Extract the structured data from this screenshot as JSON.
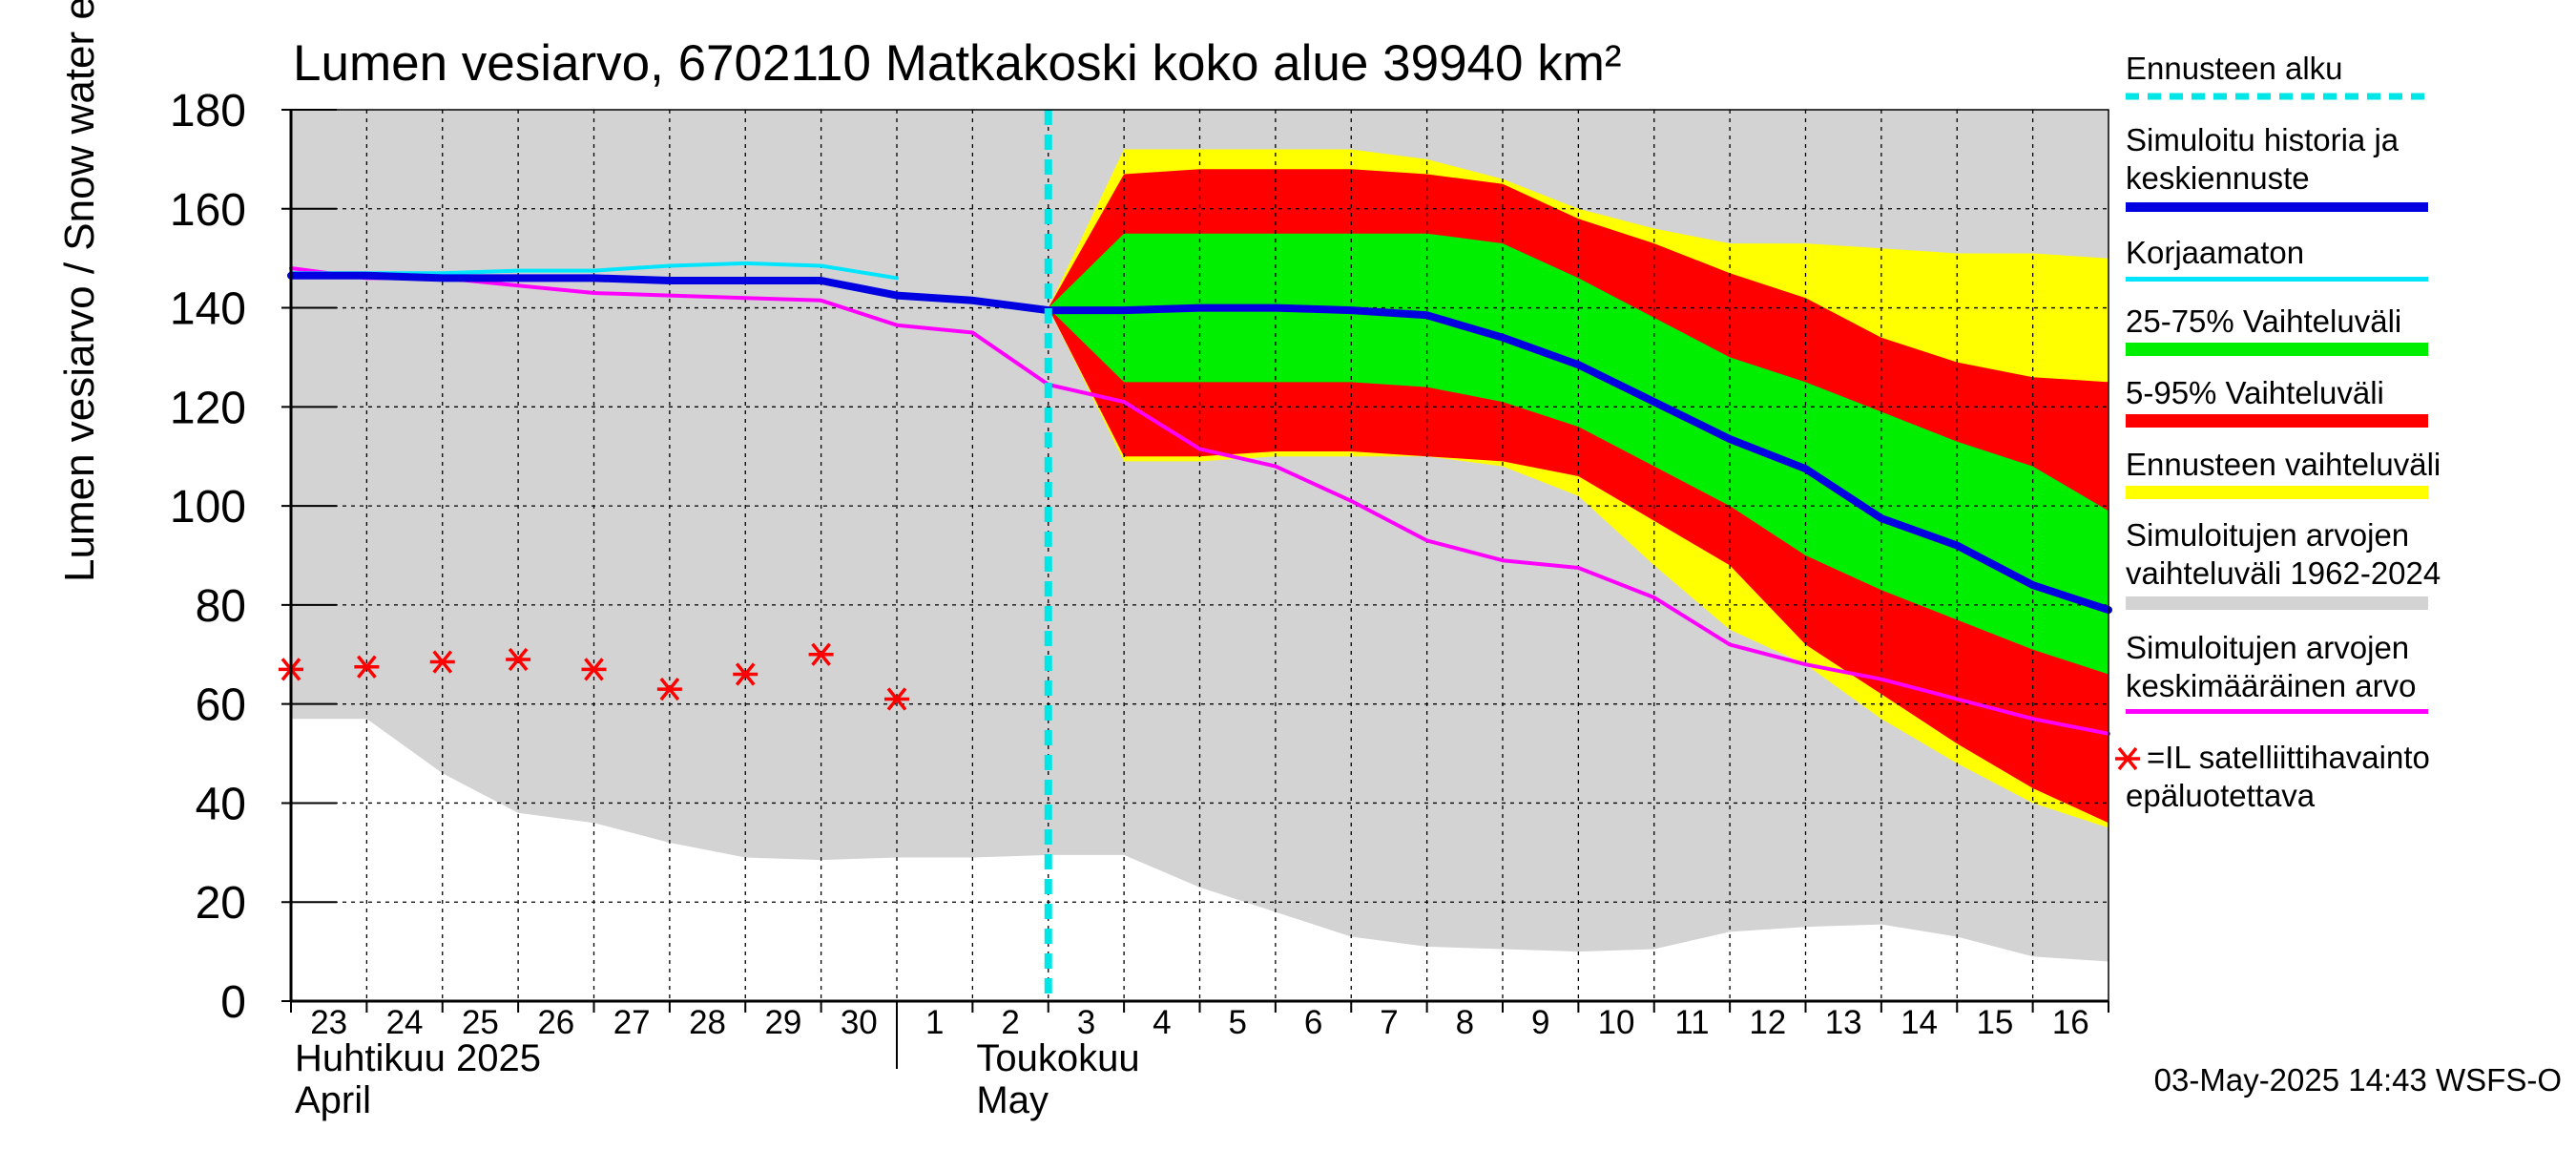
{
  "chart_data": {
    "type": "area",
    "title": "Lumen vesiarvo, 6702110 Matkakoski koko alue 39940 km²",
    "ylabel": "Lumen vesiarvo / Snow water equiv.    mm",
    "ylim": [
      0,
      180
    ],
    "yticks": [
      0,
      20,
      40,
      60,
      80,
      100,
      120,
      140,
      160,
      180
    ],
    "x_range": [
      0,
      24
    ],
    "day_labels": [
      "23",
      "24",
      "25",
      "26",
      "27",
      "28",
      "29",
      "30",
      "1",
      "2",
      "3",
      "4",
      "5",
      "6",
      "7",
      "8",
      "9",
      "10",
      "11",
      "12",
      "13",
      "14",
      "15",
      "16"
    ],
    "month_labels": [
      {
        "fi": "Huhtikuu  2025",
        "en": "April",
        "at_day": 0
      },
      {
        "fi": "Toukokuu",
        "en": "May",
        "at_day": 9
      }
    ],
    "month_separator_day": 8,
    "forecast_start_day": 10,
    "timestamp": "03-May-2025 14:43 WSFS-O",
    "legend": {
      "forecast_start": "Ennusteen alku",
      "simulated_history": "Simuloitu historia ja keskiennuste",
      "uncorrected": "Korjaamaton",
      "range_25_75": "25-75% Vaihteluväli",
      "range_5_95": "5-95% Vaihteluväli",
      "forecast_range": "Ennusteen vaihteluväli",
      "sim_range": "Simuloitujen arvojen vaihteluväli 1962-2024",
      "sim_mean": "Simuloitujen arvojen keskimääräinen arvo",
      "satellite": "=IL satelliittihavainto epäluotettava"
    },
    "colors": {
      "sim_range": "#d3d3d3",
      "forecast_range": "#ffff00",
      "range_5_95": "#ff0000",
      "range_25_75": "#00ee00",
      "median": "#0000e0",
      "uncorrected": "#00e5ff",
      "sim_mean": "#ff00ff",
      "forecast_line": "#00e5e5",
      "satellite": "#ff0000"
    },
    "series": {
      "sim_range": {
        "x": [
          0,
          1,
          2,
          3,
          4,
          5,
          6,
          7,
          8,
          9,
          10,
          11,
          12,
          13,
          14,
          15,
          16,
          17,
          18,
          19,
          20,
          21,
          22,
          23,
          24
        ],
        "upper": [
          180,
          180,
          180,
          180,
          180,
          180,
          180,
          180,
          180,
          180,
          180,
          180,
          180,
          180,
          180,
          180,
          180,
          180,
          180,
          180,
          180,
          180,
          180,
          180,
          180
        ],
        "lower": [
          57,
          57,
          46,
          38,
          36,
          32,
          29,
          28.5,
          29,
          29,
          29.5,
          29.5,
          23,
          18,
          13,
          11,
          10.5,
          10,
          10.5,
          14,
          15,
          15.5,
          13,
          9,
          8
        ]
      },
      "forecast_range": {
        "x": [
          10,
          11,
          12,
          13,
          14,
          15,
          16,
          17,
          18,
          19,
          20,
          21,
          22,
          23,
          24
        ],
        "upper": [
          140,
          172,
          172,
          172,
          172,
          170,
          166,
          160,
          156,
          153,
          153,
          152,
          151,
          151,
          150
        ],
        "lower": [
          140,
          109,
          109,
          110,
          110,
          110,
          108,
          102,
          88,
          75,
          68,
          57,
          48,
          40,
          35
        ]
      },
      "range_5_95": {
        "x": [
          10,
          11,
          12,
          13,
          14,
          15,
          16,
          17,
          18,
          19,
          20,
          21,
          22,
          23,
          24
        ],
        "upper": [
          140,
          167,
          168,
          168,
          168,
          167,
          165,
          158,
          153,
          147,
          142,
          134,
          129,
          126,
          125
        ],
        "lower": [
          140,
          110,
          110,
          111,
          111,
          110,
          109,
          106,
          97,
          88,
          72,
          62,
          52,
          43,
          36
        ]
      },
      "range_25_75": {
        "x": [
          10,
          11,
          12,
          13,
          14,
          15,
          16,
          17,
          18,
          19,
          20,
          21,
          22,
          23,
          24
        ],
        "upper": [
          140,
          155,
          155,
          155,
          155,
          155,
          153,
          146,
          138,
          130,
          125,
          119,
          113,
          108,
          99
        ],
        "lower": [
          140,
          125,
          125,
          125,
          125,
          124,
          121,
          116,
          108,
          100,
          90,
          83,
          77,
          71,
          66
        ]
      },
      "median": {
        "x": [
          0,
          1,
          2,
          3,
          4,
          5,
          6,
          7,
          8,
          9,
          10,
          11,
          12,
          13,
          14,
          15,
          16,
          17,
          18,
          19,
          20,
          21,
          22,
          23,
          24
        ],
        "y": [
          146.5,
          146.5,
          146,
          146,
          146,
          145.5,
          145.5,
          145.5,
          142.5,
          141.5,
          139.5,
          139.5,
          140,
          140,
          139.5,
          138.5,
          134,
          128.5,
          121,
          113.5,
          107.5,
          97.5,
          92,
          84,
          79
        ]
      },
      "uncorrected": {
        "x": [
          0,
          1,
          2,
          3,
          4,
          5,
          6,
          7,
          8
        ],
        "y": [
          147,
          147,
          147,
          147.5,
          147.5,
          148.5,
          149,
          148.5,
          146
        ]
      },
      "sim_mean": {
        "x": [
          0,
          1,
          2,
          3,
          4,
          5,
          6,
          7,
          8,
          9,
          10,
          11,
          12,
          13,
          14,
          15,
          16,
          17,
          18,
          19,
          20,
          21,
          22,
          23,
          24
        ],
        "y": [
          148,
          146,
          146,
          144.5,
          143,
          142.5,
          142,
          141.5,
          136.5,
          135,
          124.5,
          121,
          111.5,
          108,
          101,
          93,
          89,
          87.5,
          81.5,
          72,
          68,
          65,
          61,
          57,
          54
        ]
      },
      "satellite": {
        "x": [
          0,
          1,
          2,
          3,
          4,
          5,
          6,
          7,
          8
        ],
        "y": [
          67,
          67.5,
          68.5,
          69,
          67,
          63,
          66,
          70,
          61
        ]
      }
    }
  }
}
